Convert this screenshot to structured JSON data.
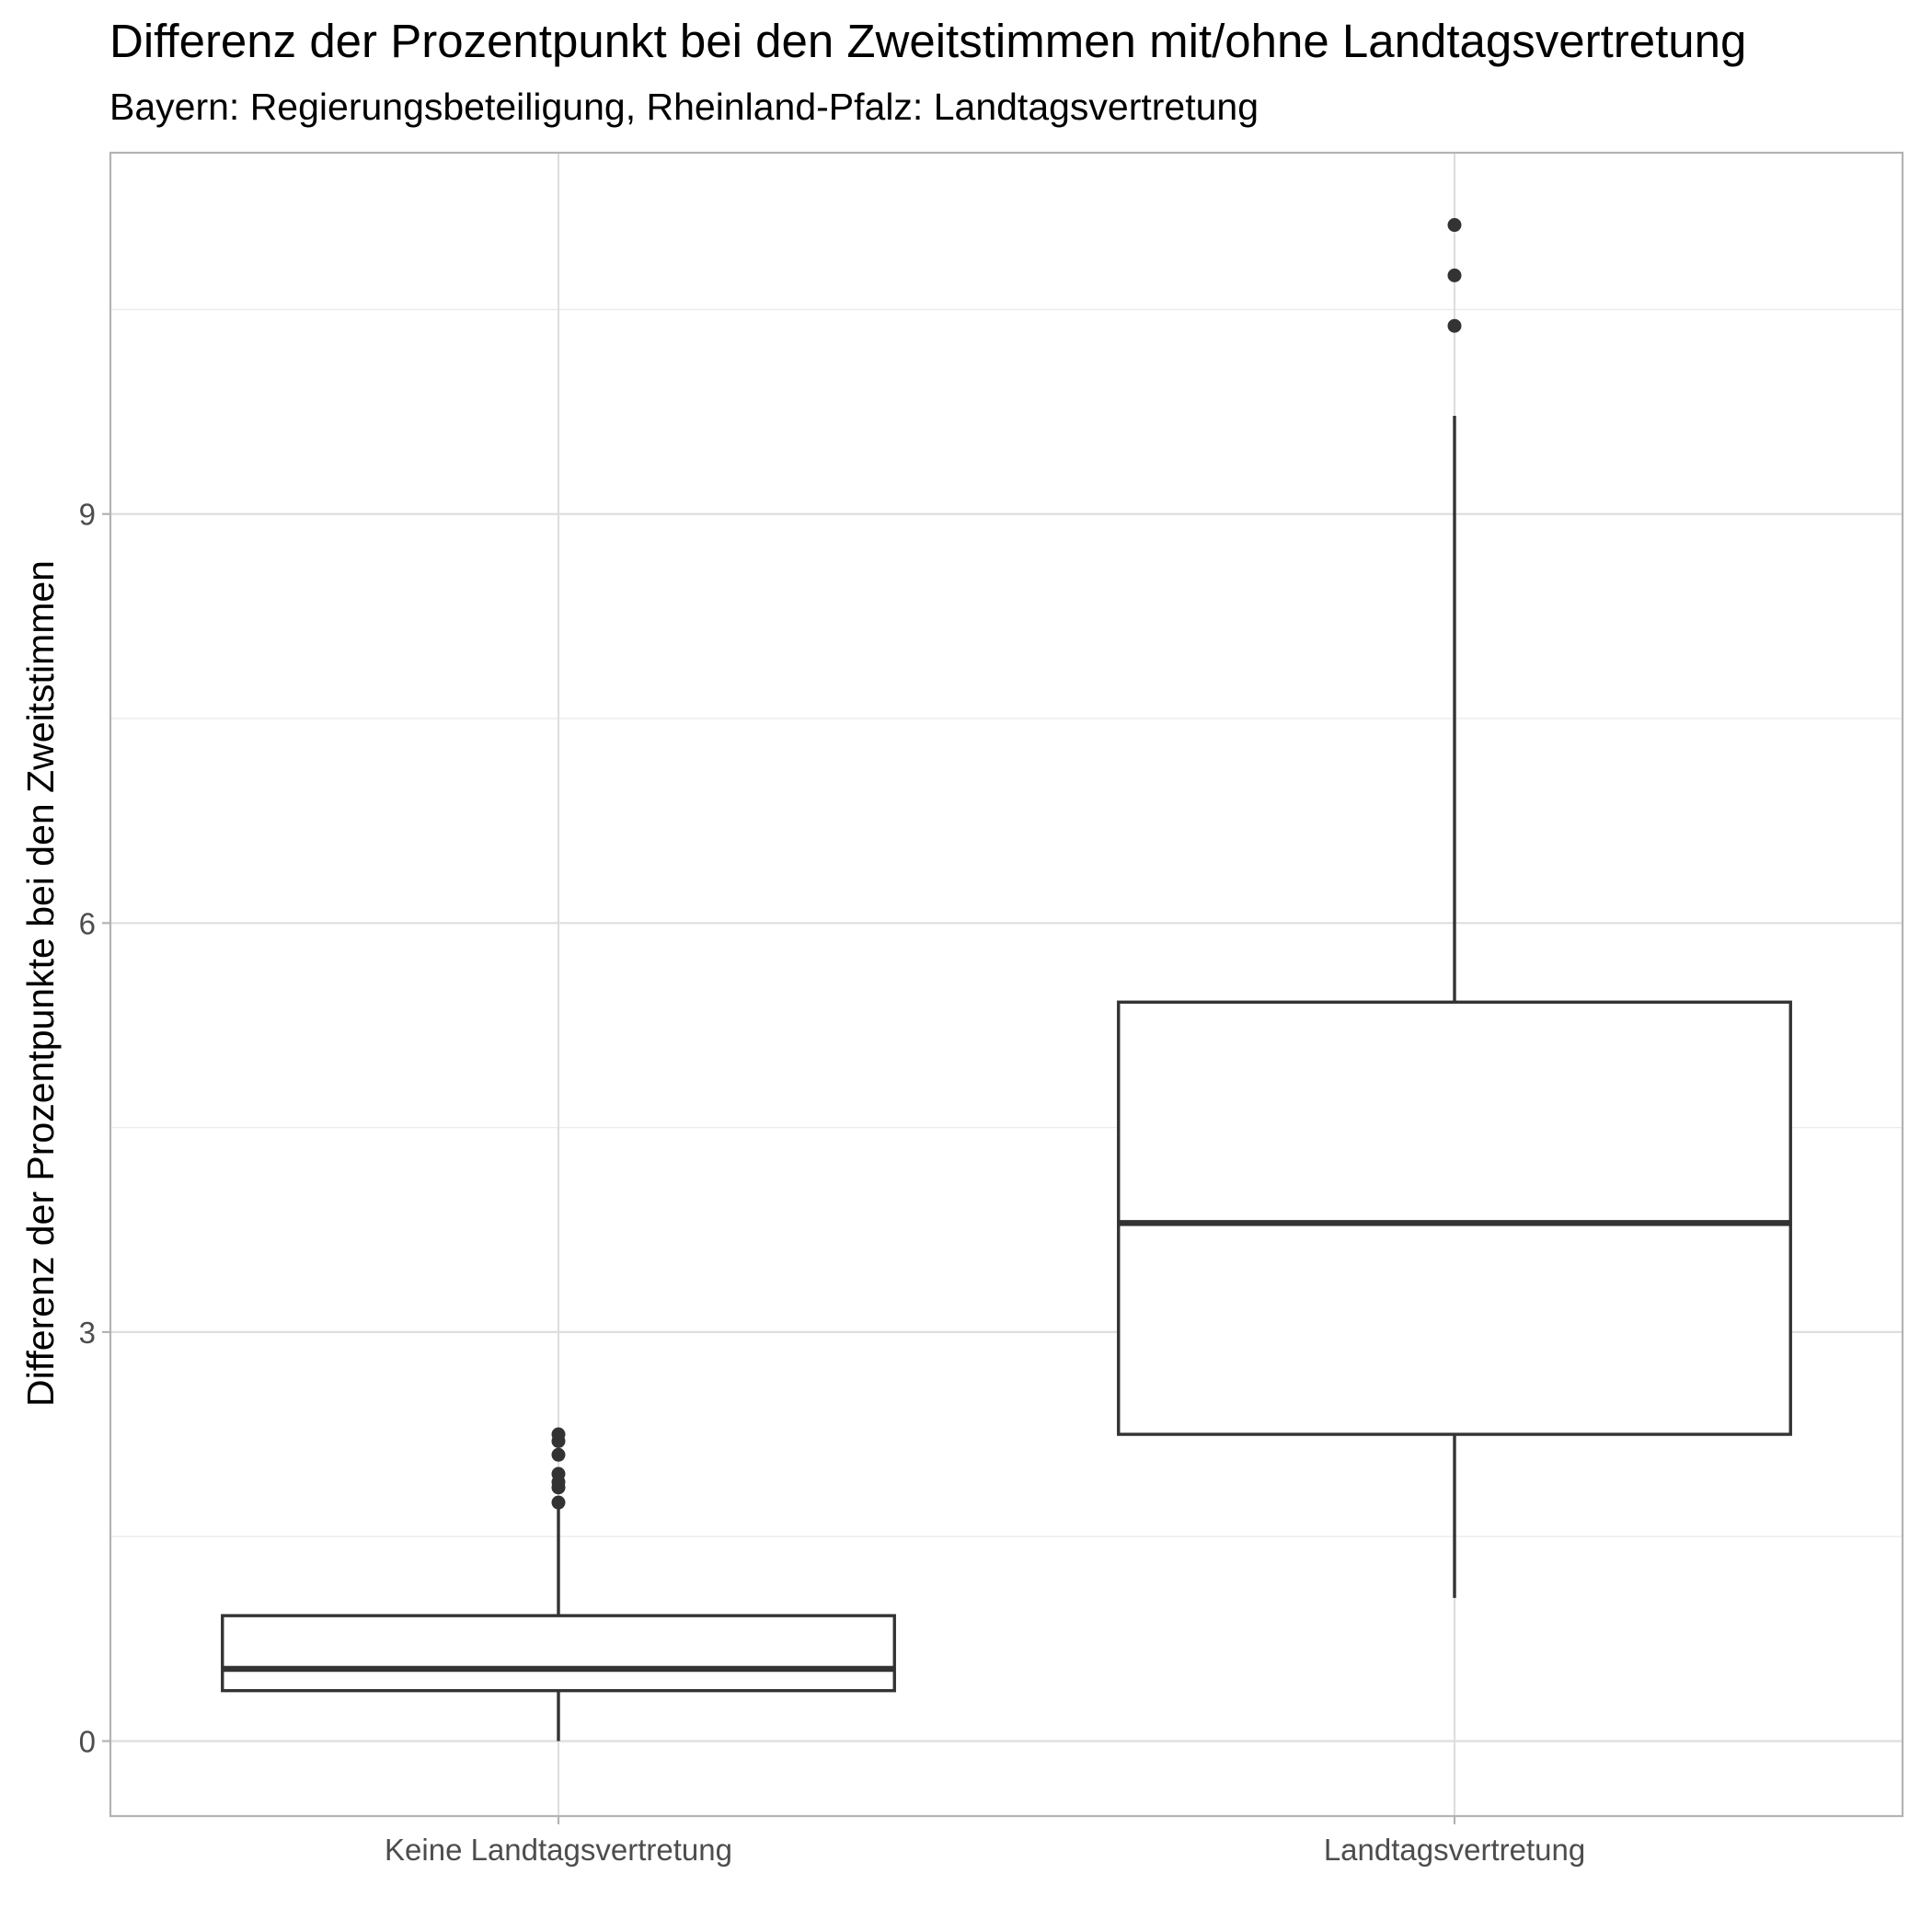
{
  "chart_data": {
    "type": "boxplot",
    "title": "Differenz der Prozentpunkt bei den Zweitstimmen mit/ohne Landtagsvertretung",
    "subtitle": "Bayern: Regierungsbeteiligung, Rheinland-Pfalz: Landtagsvertretung",
    "xlabel": "",
    "ylabel": "Differenz der Prozentpunkte bei den Zweitstimmen",
    "categories": [
      "Keine Landtagsvertretung",
      "Landtagsvertretung"
    ],
    "ylim": [
      -0.55,
      11.65
    ],
    "yticks": [
      0,
      3,
      6,
      9
    ],
    "grid": true,
    "legend": "none",
    "boxes": [
      {
        "category": "Keine Landtagsvertretung",
        "whisker_low": 0.0,
        "q1": 0.37,
        "median": 0.53,
        "q3": 0.92,
        "whisker_high": 1.72,
        "outliers": [
          1.75,
          1.86,
          1.9,
          1.96,
          2.1,
          2.2,
          2.25
        ]
      },
      {
        "category": "Landtagsvertretung",
        "whisker_low": 1.05,
        "q1": 2.25,
        "median": 3.8,
        "q3": 5.42,
        "whisker_high": 9.72,
        "outliers": [
          10.38,
          10.75,
          11.12
        ]
      }
    ]
  }
}
